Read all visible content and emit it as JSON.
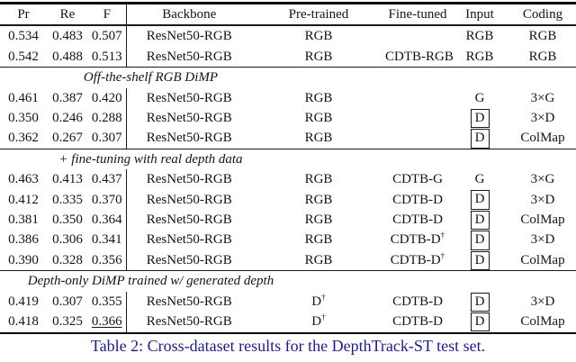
{
  "caption": "Table 2: Cross-dataset results for the DepthTrack-ST test set.",
  "caption_color": "#1e1e80",
  "table": {
    "columns": [
      "Pr",
      "Re",
      "F",
      "Backbone",
      "Pre-trained",
      "Fine-tuned",
      "Input",
      "Coding"
    ],
    "sections": [
      {
        "rows": [
          {
            "pr": "0.534",
            "re": "0.483",
            "f": "0.507",
            "backbone": "ResNet50-RGB",
            "pretrained": "RGB",
            "finetuned": "",
            "input": "RGB",
            "input_boxed": false,
            "coding": "RGB"
          },
          {
            "pr": "0.542",
            "re": "0.488",
            "f": "0.513",
            "backbone": "ResNet50-RGB",
            "pretrained": "RGB",
            "finetuned": "CDTB-RGB",
            "input": "RGB",
            "input_boxed": false,
            "coding": "RGB"
          }
        ]
      },
      {
        "title": "Off-the-shelf RGB DiMP",
        "rows": [
          {
            "pr": "0.461",
            "re": "0.387",
            "f": "0.420",
            "backbone": "ResNet50-RGB",
            "pretrained": "RGB",
            "finetuned": "",
            "input": "G",
            "input_boxed": false,
            "coding": "3×G"
          },
          {
            "pr": "0.350",
            "re": "0.246",
            "f": "0.288",
            "backbone": "ResNet50-RGB",
            "pretrained": "RGB",
            "finetuned": "",
            "input": "D",
            "input_boxed": true,
            "coding": "3×D"
          },
          {
            "pr": "0.362",
            "re": "0.267",
            "f": "0.307",
            "backbone": "ResNet50-RGB",
            "pretrained": "RGB",
            "finetuned": "",
            "input": "D",
            "input_boxed": true,
            "coding": "ColMap"
          }
        ]
      },
      {
        "title": "+ fine-tuning with real depth data",
        "rows": [
          {
            "pr": "0.463",
            "re": "0.413",
            "f": "0.437",
            "backbone": "ResNet50-RGB",
            "pretrained": "RGB",
            "finetuned": "CDTB-G",
            "input": "G",
            "input_boxed": false,
            "coding": "3×G"
          },
          {
            "pr": "0.412",
            "re": "0.335",
            "f": "0.370",
            "f_bold": true,
            "backbone": "ResNet50-RGB",
            "pretrained": "RGB",
            "finetuned": "CDTB-D",
            "input": "D",
            "input_boxed": true,
            "coding": "3×D"
          },
          {
            "pr": "0.381",
            "re": "0.350",
            "f": "0.364",
            "backbone": "ResNet50-RGB",
            "pretrained": "RGB",
            "finetuned": "CDTB-D",
            "input": "D",
            "input_boxed": true,
            "coding": "ColMap"
          },
          {
            "pr": "0.386",
            "re": "0.306",
            "f": "0.341",
            "backbone": "ResNet50-RGB",
            "pretrained": "RGB",
            "finetuned": "CDTB-D†",
            "input": "D",
            "input_boxed": true,
            "coding": "3×D"
          },
          {
            "pr": "0.390",
            "re": "0.328",
            "f": "0.356",
            "backbone": "ResNet50-RGB",
            "pretrained": "RGB",
            "finetuned": "CDTB-D†",
            "input": "D",
            "input_boxed": true,
            "coding": "ColMap"
          }
        ]
      },
      {
        "title": "Depth-only DiMP trained w/ generated depth",
        "rows": [
          {
            "pr": "0.419",
            "re": "0.307",
            "f": "0.355",
            "backbone": "ResNet50-RGB",
            "pretrained": "D†",
            "finetuned": "CDTB-D",
            "input": "D",
            "input_boxed": true,
            "coding": "3×D"
          },
          {
            "pr": "0.418",
            "re": "0.325",
            "f": "0.366",
            "f_underline": true,
            "backbone": "ResNet50-RGB",
            "pretrained": "D†",
            "finetuned": "CDTB-D",
            "input": "D",
            "input_boxed": true,
            "coding": "ColMap"
          }
        ]
      }
    ]
  }
}
